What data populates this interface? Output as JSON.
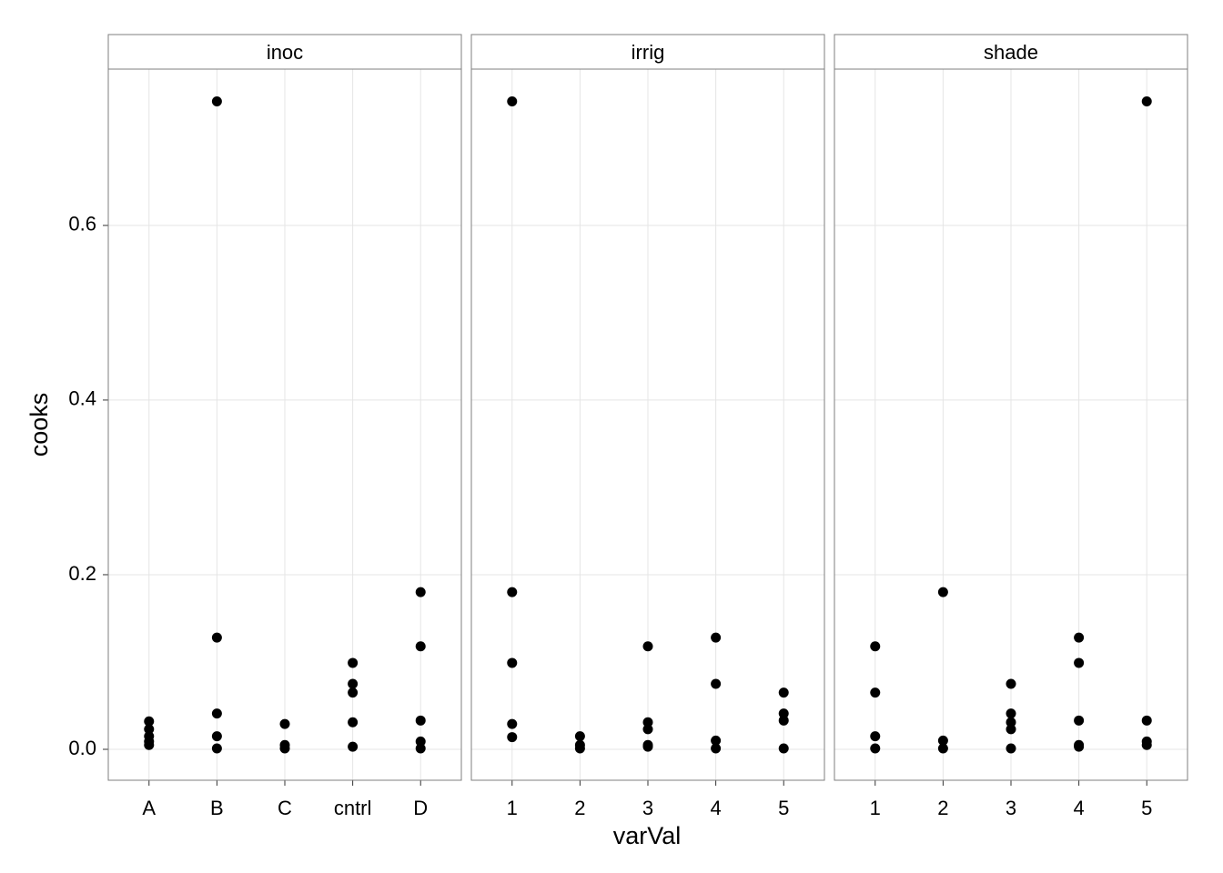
{
  "chart_data": {
    "type": "scatter",
    "x_label": "varVal",
    "y_label": "cooks",
    "color": "#000000",
    "grid": true,
    "ylim": [
      -0.0354,
      0.779
    ],
    "yticks": [
      {
        "value": 0,
        "label": "0.0"
      },
      {
        "value": 0.2,
        "label": "0.2"
      },
      {
        "value": 0.4,
        "label": "0.4"
      },
      {
        "value": 0.6,
        "label": "0.6"
      }
    ],
    "facets": [
      {
        "title": "inoc",
        "categories": [
          "A",
          "B",
          "C",
          "cntrl",
          "D"
        ],
        "x": [
          "A",
          "A",
          "A",
          "A",
          "A",
          "B",
          "B",
          "B",
          "B",
          "B",
          "C",
          "C",
          "C",
          "cntrl",
          "cntrl",
          "cntrl",
          "cntrl",
          "cntrl",
          "D",
          "D",
          "D",
          "D",
          "D"
        ],
        "values": [
          0.032,
          0.023,
          0.015,
          0.009,
          0.005,
          0.742,
          0.128,
          0.041,
          0.015,
          0.001,
          0.029,
          0.005,
          0.001,
          0.099,
          0.075,
          0.065,
          0.031,
          0.003,
          0.18,
          0.118,
          0.033,
          0.009,
          0.001
        ]
      },
      {
        "title": "irrig",
        "categories": [
          "1",
          "2",
          "3",
          "4",
          "5"
        ],
        "x": [
          "1",
          "1",
          "1",
          "1",
          "1",
          "2",
          "2",
          "2",
          "3",
          "3",
          "3",
          "3",
          "3",
          "4",
          "4",
          "4",
          "4",
          "5",
          "5",
          "5",
          "5"
        ],
        "values": [
          0.742,
          0.18,
          0.099,
          0.029,
          0.014,
          0.015,
          0.005,
          0.001,
          0.118,
          0.031,
          0.023,
          0.005,
          0.003,
          0.128,
          0.075,
          0.01,
          0.001,
          0.065,
          0.041,
          0.033,
          0.001
        ]
      },
      {
        "title": "shade",
        "categories": [
          "1",
          "2",
          "3",
          "4",
          "5"
        ],
        "x": [
          "1",
          "1",
          "1",
          "1",
          "2",
          "2",
          "2",
          "3",
          "3",
          "3",
          "3",
          "3",
          "4",
          "4",
          "4",
          "4",
          "4",
          "5",
          "5",
          "5",
          "5"
        ],
        "values": [
          0.118,
          0.065,
          0.015,
          0.001,
          0.18,
          0.01,
          0.001,
          0.075,
          0.041,
          0.031,
          0.023,
          0.001,
          0.128,
          0.099,
          0.033,
          0.005,
          0.003,
          0.742,
          0.033,
          0.009,
          0.005
        ]
      }
    ]
  }
}
